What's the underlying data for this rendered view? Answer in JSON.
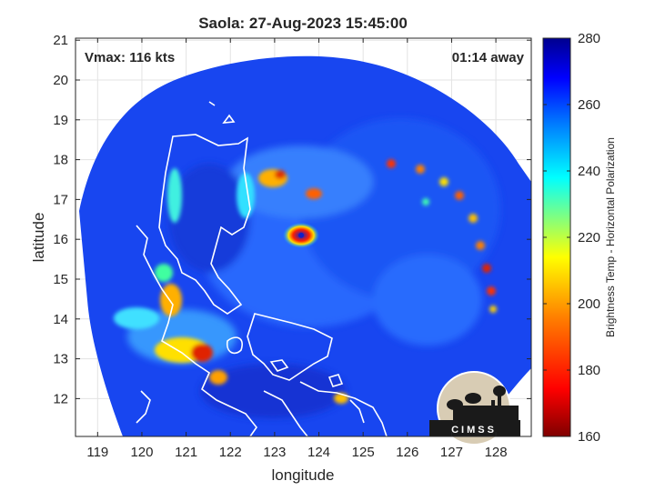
{
  "chart_data": {
    "type": "heatmap",
    "title": "Saola: 27-Aug-2023 15:45:00",
    "xlabel": "longitude",
    "ylabel": "latitude",
    "xlim": [
      118.5,
      128.8
    ],
    "ylim": [
      11.05,
      21.05
    ],
    "xticks": [
      119,
      120,
      121,
      122,
      123,
      124,
      125,
      126,
      127,
      128
    ],
    "yticks": [
      12,
      13,
      14,
      15,
      16,
      17,
      18,
      19,
      20,
      21
    ],
    "grid": true,
    "annotation_left": "Vmax: 116 kts",
    "annotation_right": "01:14 away",
    "storm_center": [
      123.6,
      16.1
    ],
    "colorbar": {
      "label": "Brightness Temp - Horizontal Polarization",
      "min": 160,
      "max": 280,
      "ticks": [
        160,
        180,
        200,
        220,
        240,
        260,
        280
      ],
      "colors": [
        "#7f0000",
        "#ff0000",
        "#ff8000",
        "#ffff00",
        "#80ff80",
        "#00ffff",
        "#0080ff",
        "#0000ff",
        "#00008f"
      ]
    },
    "logo_text": "CIMSS"
  }
}
